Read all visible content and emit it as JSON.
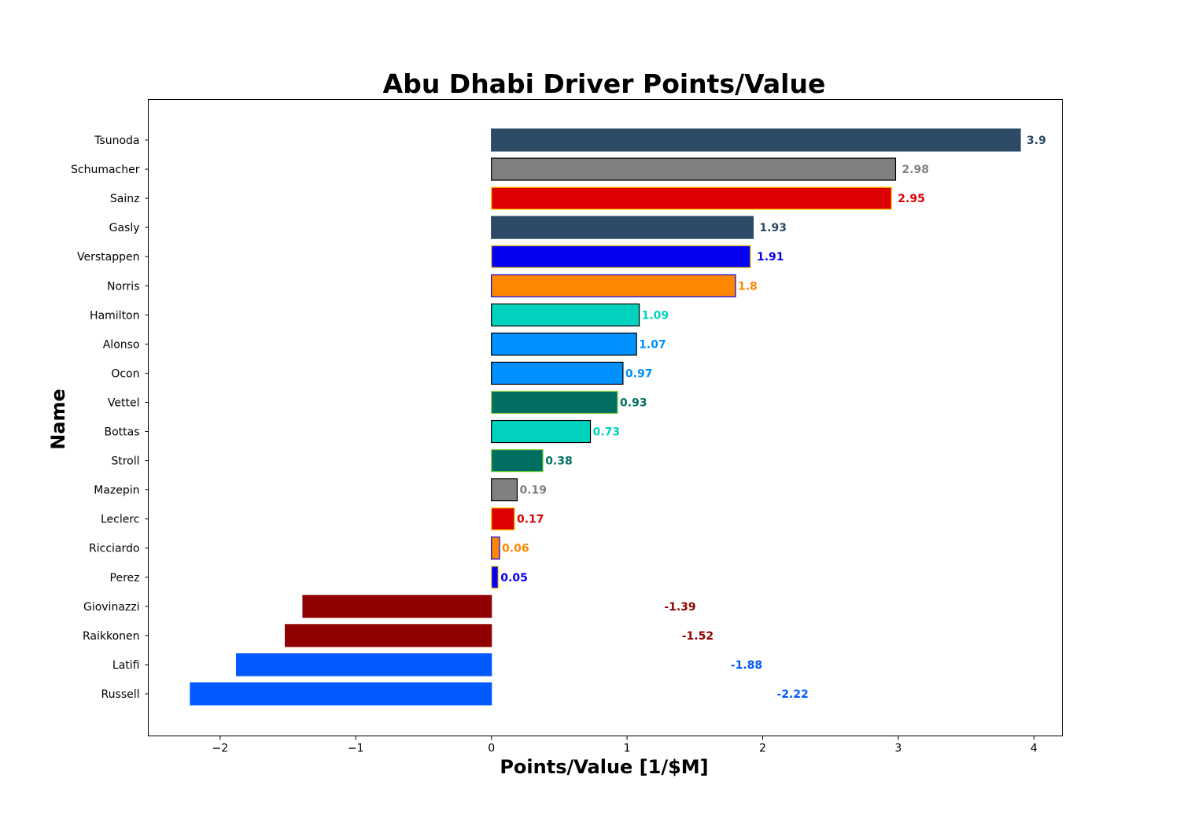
{
  "chart_data": {
    "type": "bar",
    "orientation": "horizontal",
    "title": "Abu Dhabi Driver Points/Value",
    "xlabel": "Points/Value [1/$M]",
    "ylabel": "Name",
    "xlim": [
      -2.53,
      4.21
    ],
    "xticks": [
      -2,
      -1,
      0,
      1,
      2,
      3,
      4
    ],
    "xtick_labels": [
      "−2",
      "−1",
      "0",
      "1",
      "2",
      "3",
      "4"
    ],
    "grid": false,
    "categories": [
      "Tsunoda",
      "Schumacher",
      "Sainz",
      "Gasly",
      "Verstappen",
      "Norris",
      "Hamilton",
      "Alonso",
      "Ocon",
      "Vettel",
      "Bottas",
      "Stroll",
      "Mazepin",
      "Leclerc",
      "Ricciardo",
      "Perez",
      "Giovinazzi",
      "Raikkonen",
      "Latifi",
      "Russell"
    ],
    "values": [
      3.9,
      2.98,
      2.95,
      1.93,
      1.91,
      1.8,
      1.09,
      1.07,
      0.97,
      0.93,
      0.73,
      0.38,
      0.19,
      0.17,
      0.06,
      0.05,
      -1.39,
      -1.52,
      -1.88,
      -2.22
    ],
    "value_labels": [
      "3.9",
      "2.98",
      "2.95",
      "1.93",
      "1.91",
      "1.8",
      "1.09",
      "1.07",
      "0.97",
      "0.93",
      "0.73",
      "0.38",
      "0.19",
      "0.17",
      "0.06",
      "0.05",
      "-1.39",
      "-1.52",
      "-1.88",
      "-2.22"
    ],
    "fill_colors": [
      "#2d4a66",
      "#808080",
      "#dc0000",
      "#2d4a66",
      "#0600ef",
      "#ff8700",
      "#00d2be",
      "#0090ff",
      "#0090ff",
      "#006f62",
      "#00d2be",
      "#006f62",
      "#808080",
      "#dc0000",
      "#ff8700",
      "#0600ef",
      "#900000",
      "#900000",
      "#005aff",
      "#005aff"
    ],
    "edge_colors": [
      "#2d4a66",
      "#000000",
      "#ffd700",
      "#2d4a66",
      "#ffd700",
      "#0600ef",
      "#000000",
      "#000000",
      "#000000",
      "#7fd63a",
      "#000000",
      "#7fd63a",
      "#000000",
      "#ffd700",
      "#0600ef",
      "#ffd700",
      "#900000",
      "#900000",
      "#005aff",
      "#005aff"
    ],
    "label_colors": [
      "#2d4a66",
      "#808080",
      "#dc0000",
      "#2d4a66",
      "#0600ef",
      "#ff8700",
      "#00d2be",
      "#0090ff",
      "#0090ff",
      "#006f62",
      "#00d2be",
      "#006f62",
      "#808080",
      "#dc0000",
      "#ff8700",
      "#0600ef",
      "#900000",
      "#900000",
      "#005aff",
      "#005aff"
    ]
  }
}
